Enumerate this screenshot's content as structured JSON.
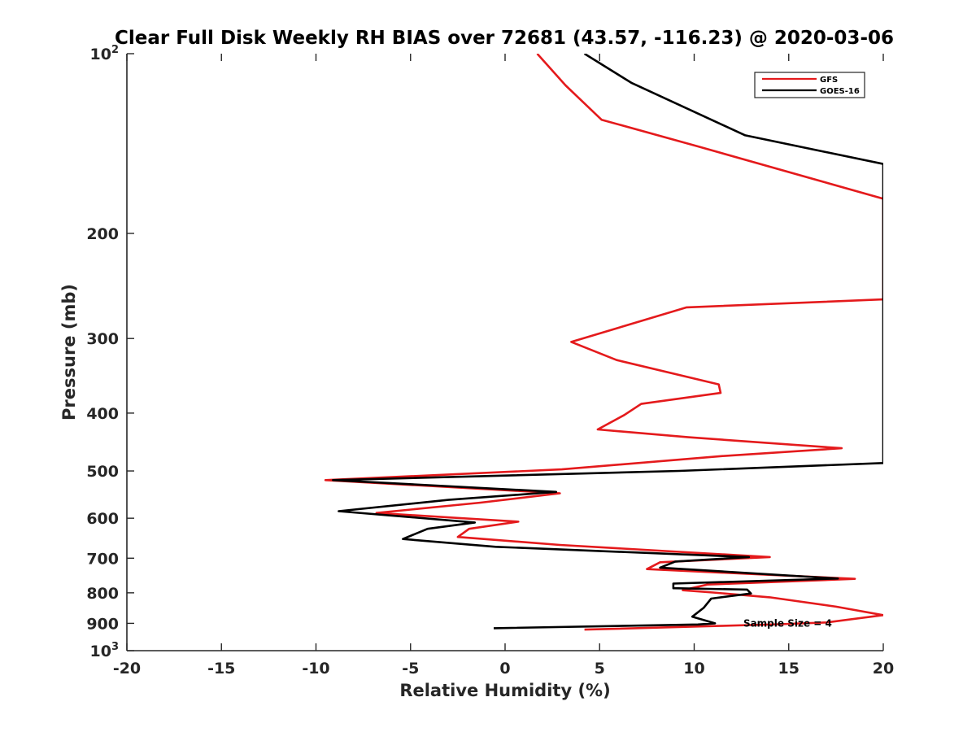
{
  "chart_data": {
    "type": "line",
    "title": "Clear Full Disk Weekly RH BIAS over 72681 (43.57, -116.23) @ 2020-03-06",
    "xlabel": "Relative Humidity (%)",
    "ylabel": "Pressure (mb)",
    "xlim": [
      -20,
      20
    ],
    "ylim": [
      1000,
      100
    ],
    "yscale": "log",
    "y_reversed": true,
    "grid": false,
    "legend_position": "top-right",
    "x_ticks": [
      "-20",
      "-15",
      "-10",
      "-5",
      "0",
      "5",
      "10",
      "15",
      "20"
    ],
    "y_ticks": [
      {
        "value": 100,
        "base": "10",
        "exp": "2"
      },
      {
        "value": 200,
        "label": "200"
      },
      {
        "value": 300,
        "label": "300"
      },
      {
        "value": 400,
        "label": "400"
      },
      {
        "value": 500,
        "label": "500"
      },
      {
        "value": 600,
        "label": "600"
      },
      {
        "value": 700,
        "label": "700"
      },
      {
        "value": 800,
        "label": "800"
      },
      {
        "value": 900,
        "label": "900"
      },
      {
        "value": 1000,
        "base": "10",
        "exp": "3"
      }
    ],
    "series": [
      {
        "name": "GFS",
        "color": "#e41a1c",
        "x": [
          1.7,
          3.2,
          5.1,
          10.2,
          20,
          20,
          9.6,
          3.5,
          5.9,
          11.3,
          11.4,
          7.2,
          6.3,
          4.9,
          9.7,
          17.8,
          11.5,
          3.0,
          -9.5,
          2.9,
          -1.3,
          -6.8,
          0.7,
          -1.9,
          -2.5,
          2.9,
          14.0,
          8.2,
          7.5,
          18.5,
          10.7,
          9.4,
          11.0,
          14.0,
          17.5,
          20,
          17.0,
          14.5,
          11.3,
          4.2
        ],
        "y": [
          100,
          113,
          129,
          143,
          175,
          258,
          266,
          304,
          326,
          358,
          370,
          386,
          403,
          426,
          439,
          458,
          472,
          497,
          518,
          545,
          565,
          588,
          608,
          625,
          645,
          665,
          697,
          711,
          730,
          758,
          775,
          792,
          799,
          814,
          844,
          872,
          897,
          903,
          909,
          922
        ]
      },
      {
        "name": "GOES-16",
        "color": "#000000",
        "x": [
          4.2,
          6.7,
          12.7,
          20,
          20,
          9.2,
          -9.1,
          2.7,
          -3.0,
          -8.8,
          -1.6,
          -4.1,
          -5.4,
          -0.5,
          12.9,
          9.0,
          8.2,
          17.6,
          8.9,
          8.9,
          12.8,
          13.0,
          10.9,
          10.5,
          9.9,
          11.1,
          10.2,
          -0.6
        ],
        "y": [
          100,
          112,
          137,
          153,
          485,
          500,
          518,
          542,
          559,
          584,
          610,
          625,
          650,
          670,
          697,
          709,
          726,
          757,
          772,
          786,
          790,
          802,
          818,
          848,
          877,
          900,
          904,
          917
        ]
      }
    ],
    "annotations": [
      {
        "text": "Sample Size = 4",
        "x": 12.6,
        "y": 900
      }
    ]
  }
}
